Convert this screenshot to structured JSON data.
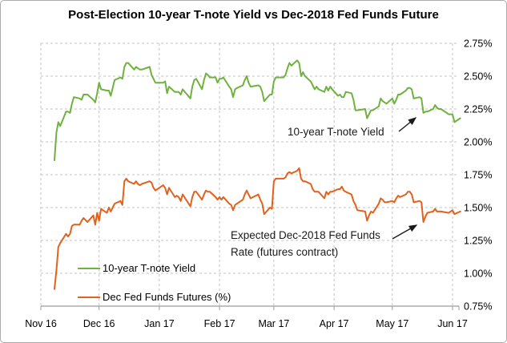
{
  "chart_data": {
    "type": "line",
    "title": "Post-Election 10-year T-note Yield vs Dec-2018 Fed Funds Future",
    "grid": true,
    "y_axis_side": "right",
    "legend_position": "inside-bottom-left",
    "ylim": [
      0.75,
      2.75
    ],
    "xlim_dates": [
      "2016-11-01",
      "2017-06-01"
    ],
    "y_ticks": [
      {
        "value": 2.75,
        "label": "2.75%"
      },
      {
        "value": 2.5,
        "label": "2.50%"
      },
      {
        "value": 2.25,
        "label": "2.25%"
      },
      {
        "value": 2.0,
        "label": "2.00%"
      },
      {
        "value": 1.75,
        "label": "1.75%"
      },
      {
        "value": 1.5,
        "label": "1.50%"
      },
      {
        "value": 1.25,
        "label": "1.25%"
      },
      {
        "value": 1.0,
        "label": "1.00%"
      },
      {
        "value": 0.75,
        "label": "0.75%"
      }
    ],
    "x_ticks": [
      {
        "date": "2016-11-01",
        "label": "Nov 16"
      },
      {
        "date": "2016-12-01",
        "label": "Dec 16"
      },
      {
        "date": "2017-01-01",
        "label": "Jan 17"
      },
      {
        "date": "2017-02-01",
        "label": "Feb 17"
      },
      {
        "date": "2017-03-01",
        "label": "Mar 17"
      },
      {
        "date": "2017-04-01",
        "label": "Apr 17"
      },
      {
        "date": "2017-05-01",
        "label": "May 17"
      },
      {
        "date": "2017-06-01",
        "label": "Jun 17"
      }
    ],
    "dates": [
      "2016-11-08",
      "2016-11-09",
      "2016-11-10",
      "2016-11-11",
      "2016-11-14",
      "2016-11-15",
      "2016-11-16",
      "2016-11-17",
      "2016-11-18",
      "2016-11-21",
      "2016-11-22",
      "2016-11-23",
      "2016-11-25",
      "2016-11-28",
      "2016-11-29",
      "2016-11-30",
      "2016-12-01",
      "2016-12-02",
      "2016-12-05",
      "2016-12-06",
      "2016-12-07",
      "2016-12-08",
      "2016-12-09",
      "2016-12-12",
      "2016-12-13",
      "2016-12-14",
      "2016-12-15",
      "2016-12-16",
      "2016-12-19",
      "2016-12-20",
      "2016-12-21",
      "2016-12-22",
      "2016-12-23",
      "2016-12-27",
      "2016-12-28",
      "2016-12-29",
      "2016-12-30",
      "2017-01-03",
      "2017-01-04",
      "2017-01-05",
      "2017-01-06",
      "2017-01-09",
      "2017-01-10",
      "2017-01-11",
      "2017-01-12",
      "2017-01-13",
      "2017-01-17",
      "2017-01-18",
      "2017-01-19",
      "2017-01-20",
      "2017-01-23",
      "2017-01-24",
      "2017-01-25",
      "2017-01-26",
      "2017-01-27",
      "2017-01-30",
      "2017-01-31",
      "2017-02-01",
      "2017-02-02",
      "2017-02-03",
      "2017-02-06",
      "2017-02-07",
      "2017-02-08",
      "2017-02-09",
      "2017-02-10",
      "2017-02-13",
      "2017-02-14",
      "2017-02-15",
      "2017-02-16",
      "2017-02-17",
      "2017-02-21",
      "2017-02-22",
      "2017-02-23",
      "2017-02-24",
      "2017-02-27",
      "2017-02-28",
      "2017-03-01",
      "2017-03-02",
      "2017-03-03",
      "2017-03-06",
      "2017-03-07",
      "2017-03-08",
      "2017-03-09",
      "2017-03-10",
      "2017-03-13",
      "2017-03-14",
      "2017-03-15",
      "2017-03-16",
      "2017-03-17",
      "2017-03-20",
      "2017-03-21",
      "2017-03-22",
      "2017-03-23",
      "2017-03-24",
      "2017-03-27",
      "2017-03-28",
      "2017-03-29",
      "2017-03-30",
      "2017-03-31",
      "2017-04-03",
      "2017-04-04",
      "2017-04-05",
      "2017-04-06",
      "2017-04-07",
      "2017-04-10",
      "2017-04-11",
      "2017-04-12",
      "2017-04-13",
      "2017-04-17",
      "2017-04-18",
      "2017-04-19",
      "2017-04-20",
      "2017-04-21",
      "2017-04-24",
      "2017-04-25",
      "2017-04-26",
      "2017-04-27",
      "2017-04-28",
      "2017-05-01",
      "2017-05-02",
      "2017-05-03",
      "2017-05-04",
      "2017-05-05",
      "2017-05-08",
      "2017-05-09",
      "2017-05-10",
      "2017-05-11",
      "2017-05-12",
      "2017-05-15",
      "2017-05-16",
      "2017-05-17",
      "2017-05-18",
      "2017-05-19",
      "2017-05-22",
      "2017-05-23",
      "2017-05-24",
      "2017-05-25",
      "2017-05-26",
      "2017-05-30",
      "2017-05-31",
      "2017-06-01",
      "2017-06-02",
      "2017-06-05"
    ],
    "series": [
      {
        "name": "10-year T-note Yield",
        "color": "#6FB240",
        "values": [
          1.86,
          2.07,
          2.15,
          2.12,
          2.23,
          2.23,
          2.22,
          2.29,
          2.34,
          2.33,
          2.32,
          2.36,
          2.36,
          2.32,
          2.3,
          2.37,
          2.45,
          2.4,
          2.39,
          2.39,
          2.35,
          2.41,
          2.47,
          2.49,
          2.48,
          2.57,
          2.6,
          2.6,
          2.55,
          2.57,
          2.56,
          2.55,
          2.55,
          2.57,
          2.51,
          2.48,
          2.45,
          2.45,
          2.46,
          2.37,
          2.42,
          2.38,
          2.38,
          2.38,
          2.36,
          2.4,
          2.33,
          2.42,
          2.47,
          2.48,
          2.4,
          2.47,
          2.52,
          2.51,
          2.49,
          2.49,
          2.45,
          2.48,
          2.48,
          2.49,
          2.42,
          2.4,
          2.34,
          2.4,
          2.41,
          2.43,
          2.47,
          2.5,
          2.45,
          2.42,
          2.43,
          2.42,
          2.38,
          2.31,
          2.36,
          2.36,
          2.46,
          2.49,
          2.49,
          2.49,
          2.51,
          2.56,
          2.6,
          2.58,
          2.62,
          2.6,
          2.5,
          2.53,
          2.5,
          2.46,
          2.43,
          2.4,
          2.42,
          2.4,
          2.38,
          2.42,
          2.39,
          2.42,
          2.4,
          2.35,
          2.36,
          2.34,
          2.34,
          2.38,
          2.37,
          2.32,
          2.24,
          2.24,
          2.25,
          2.18,
          2.21,
          2.24,
          2.24,
          2.27,
          2.33,
          2.31,
          2.3,
          2.29,
          2.33,
          2.29,
          2.32,
          2.36,
          2.36,
          2.39,
          2.41,
          2.41,
          2.4,
          2.33,
          2.34,
          2.33,
          2.22,
          2.23,
          2.23,
          2.25,
          2.28,
          2.26,
          2.25,
          2.25,
          2.21,
          2.21,
          2.21,
          2.15,
          2.18
        ]
      },
      {
        "name": "Dec Fed Funds Futures (%)",
        "color": "#E2611C",
        "values": [
          0.88,
          1.02,
          1.2,
          1.23,
          1.3,
          1.28,
          1.3,
          1.36,
          1.37,
          1.37,
          1.4,
          1.42,
          1.39,
          1.44,
          1.37,
          1.46,
          1.4,
          1.49,
          1.46,
          1.5,
          1.47,
          1.5,
          1.53,
          1.55,
          1.52,
          1.7,
          1.72,
          1.7,
          1.68,
          1.7,
          1.68,
          1.67,
          1.68,
          1.7,
          1.69,
          1.65,
          1.63,
          1.67,
          1.65,
          1.6,
          1.65,
          1.58,
          1.59,
          1.58,
          1.55,
          1.6,
          1.51,
          1.58,
          1.62,
          1.62,
          1.56,
          1.6,
          1.63,
          1.62,
          1.62,
          1.58,
          1.56,
          1.58,
          1.56,
          1.58,
          1.53,
          1.52,
          1.48,
          1.52,
          1.53,
          1.56,
          1.6,
          1.63,
          1.6,
          1.57,
          1.6,
          1.56,
          1.53,
          1.45,
          1.5,
          1.49,
          1.7,
          1.72,
          1.72,
          1.72,
          1.73,
          1.76,
          1.77,
          1.76,
          1.78,
          1.8,
          1.72,
          1.7,
          1.7,
          1.68,
          1.64,
          1.62,
          1.62,
          1.62,
          1.57,
          1.62,
          1.6,
          1.62,
          1.62,
          1.64,
          1.64,
          1.66,
          1.63,
          1.62,
          1.6,
          1.55,
          1.52,
          1.48,
          1.47,
          1.4,
          1.44,
          1.47,
          1.46,
          1.53,
          1.57,
          1.56,
          1.54,
          1.54,
          1.55,
          1.54,
          1.57,
          1.59,
          1.58,
          1.6,
          1.62,
          1.62,
          1.6,
          1.54,
          1.55,
          1.54,
          1.39,
          1.43,
          1.46,
          1.47,
          1.49,
          1.47,
          1.47,
          1.47,
          1.46,
          1.47,
          1.48,
          1.45,
          1.47
        ]
      }
    ],
    "annotations": [
      {
        "text": "10-year T-note Yield"
      },
      {
        "line1": "Expected Dec-2018 Fed Funds",
        "line2": "Rate (futures contract)"
      }
    ]
  },
  "colors": {
    "green_series": "#6FB240",
    "orange_series": "#E2611C",
    "gridline": "#c3c3c3",
    "axis": "#9b9b9b",
    "text": "#000000"
  }
}
